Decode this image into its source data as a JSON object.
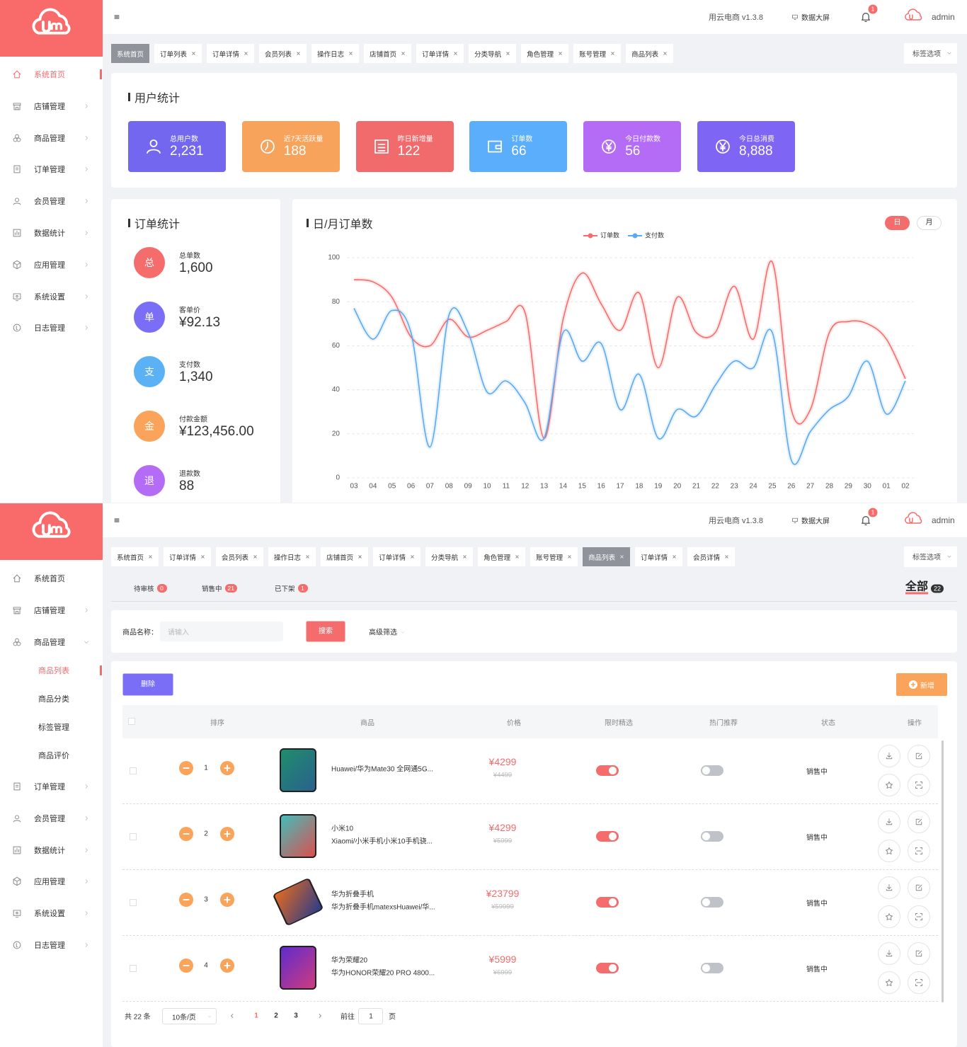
{
  "app": {
    "version": "用云电商 v1.3.8",
    "screen": "数据大屏",
    "badge": "1",
    "user": "admin",
    "tab_options": "标签选项"
  },
  "sidebar": [
    "系统首页",
    "店铺管理",
    "商品管理",
    "订单管理",
    "会员管理",
    "数据统计",
    "应用管理",
    "系统设置",
    "日志管理"
  ],
  "dashboard": {
    "tabs": [
      "系统首页",
      "订单列表",
      "订单详情",
      "会员列表",
      "操作日志",
      "店铺首页",
      "订单详情",
      "分类导航",
      "角色管理",
      "账号管理",
      "商品列表"
    ],
    "user_stats": {
      "title": "用户统计",
      "cards": [
        {
          "label": "总用户数",
          "value": "2,231"
        },
        {
          "label": "近7天活跃量",
          "value": "188"
        },
        {
          "label": "昨日新增量",
          "value": "122"
        },
        {
          "label": "订单数",
          "value": "66"
        },
        {
          "label": "今日付款数",
          "value": "56"
        },
        {
          "label": "今日总消费",
          "value": "8,888"
        }
      ]
    },
    "order_stats": {
      "title": "订单统计",
      "items": [
        {
          "icon": "总",
          "label": "总单数",
          "value": "1,600"
        },
        {
          "icon": "单",
          "label": "客单价",
          "value": "¥92.13"
        },
        {
          "icon": "支",
          "label": "支付数",
          "value": "1,340"
        },
        {
          "icon": "金",
          "label": "付款金额",
          "value": "¥123,456.00"
        },
        {
          "icon": "退",
          "label": "退款数",
          "value": "88"
        }
      ]
    },
    "toggle": [
      "日",
      "月"
    ]
  },
  "chart_data": {
    "type": "line",
    "title": "日/月订单数",
    "categories": [
      "03",
      "04",
      "05",
      "06",
      "07",
      "08",
      "09",
      "10",
      "11",
      "12",
      "13",
      "14",
      "15",
      "16",
      "17",
      "18",
      "19",
      "20",
      "21",
      "22",
      "23",
      "24",
      "25",
      "26",
      "27",
      "28",
      "29",
      "30",
      "01",
      "02"
    ],
    "series": [
      {
        "name": "订单数",
        "color": "#f56c6c",
        "values": [
          90,
          89,
          82,
          64,
          60,
          72,
          64,
          67,
          71,
          75,
          18,
          72,
          93,
          79,
          67,
          84,
          50,
          82,
          66,
          66,
          87,
          63,
          98,
          31,
          31,
          66,
          71,
          70,
          63,
          45
        ]
      },
      {
        "name": "支付数",
        "color": "#5ba9f0",
        "values": [
          77,
          63,
          76,
          66,
          14,
          74,
          66,
          39,
          44,
          34,
          18,
          66,
          53,
          61,
          31,
          47,
          18,
          31,
          28,
          42,
          53,
          50,
          66,
          8,
          21,
          31,
          37,
          53,
          29,
          44
        ]
      }
    ],
    "ylim": [
      0,
      100
    ],
    "yticks": [
      0,
      20,
      40,
      60,
      80,
      100
    ],
    "grid": true,
    "legend": "top"
  },
  "products": {
    "tabs": [
      "系统首页",
      "订单详情",
      "会员列表",
      "操作日志",
      "店铺首页",
      "订单详情",
      "分类导航",
      "角色管理",
      "账号管理",
      "商品列表",
      "订单详情",
      "会员详情"
    ],
    "submenu": [
      "商品列表",
      "商品分类",
      "标签管理",
      "商品评价"
    ],
    "status_tabs": [
      {
        "label": "待审核",
        "count": 0
      },
      {
        "label": "销售中",
        "count": 21
      },
      {
        "label": "已下架",
        "count": 1
      }
    ],
    "all": {
      "label": "全部",
      "count": 22
    },
    "search": {
      "label": "商品名称：",
      "placeholder": "请输入",
      "button": "搜索",
      "advanced": "高级筛选"
    },
    "delete": "删除",
    "add": "新增",
    "columns": [
      "排序",
      "商品",
      "价格",
      "限时精选",
      "热门推荐",
      "状态",
      "操作"
    ],
    "rows": [
      {
        "sort": 1,
        "name": [
          "Huawei/华为Mate30 全网通5G..."
        ],
        "price": "¥4299",
        "original": "¥4499",
        "limited": true,
        "hot": false,
        "status": "销售中"
      },
      {
        "sort": 2,
        "name": [
          "小米10",
          "Xiaomi/小米手机小米10手机骁..."
        ],
        "price": "¥4299",
        "original": "¥5999",
        "limited": true,
        "hot": false,
        "status": "销售中"
      },
      {
        "sort": 3,
        "name": [
          "华为折叠手机",
          "华为折叠手机matexsHuawei/华..."
        ],
        "price": "¥23799",
        "original": "¥59999",
        "limited": true,
        "hot": false,
        "status": "销售中"
      },
      {
        "sort": 4,
        "name": [
          "华为荣耀20",
          "华为HONOR荣耀20 PRO 4800..."
        ],
        "price": "¥5999",
        "original": "¥6999",
        "limited": true,
        "hot": false,
        "status": "销售中"
      }
    ],
    "pagination": {
      "total": "共 22 条",
      "page_size": "10条/页",
      "pages": [
        1,
        2,
        3
      ],
      "goto": "前往",
      "current": 1,
      "unit": "页"
    }
  }
}
